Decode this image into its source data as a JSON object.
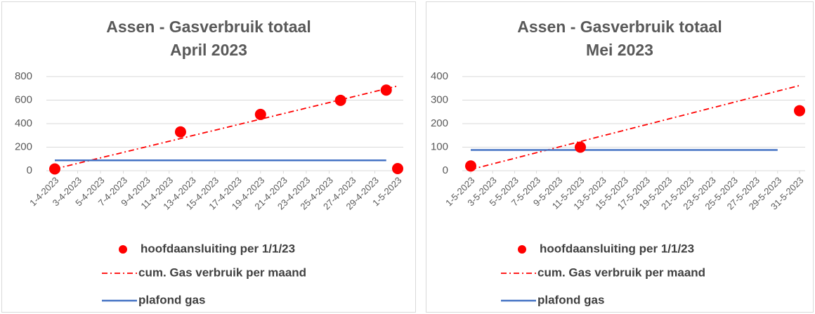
{
  "chart_data": [
    {
      "type": "line",
      "title": "Assen - Gasverbruik totaal",
      "subtitle": "April 2023",
      "xlim": [
        1,
        31
      ],
      "xticks": [
        {
          "value": 1,
          "label": "1-4-2023"
        },
        {
          "value": 3,
          "label": "3-4-2023"
        },
        {
          "value": 5,
          "label": "5-4-2023"
        },
        {
          "value": 7,
          "label": "7-4-2023"
        },
        {
          "value": 9,
          "label": "9-4-2023"
        },
        {
          "value": 11,
          "label": "11-4-2023"
        },
        {
          "value": 13,
          "label": "13-4-2023"
        },
        {
          "value": 15,
          "label": "15-4-2023"
        },
        {
          "value": 17,
          "label": "17-4-2023"
        },
        {
          "value": 19,
          "label": "19-4-2023"
        },
        {
          "value": 21,
          "label": "21-4-2023"
        },
        {
          "value": 23,
          "label": "23-4-2023"
        },
        {
          "value": 25,
          "label": "25-4-2023"
        },
        {
          "value": 27,
          "label": "27-4-2023"
        },
        {
          "value": 29,
          "label": "29-4-2023"
        },
        {
          "value": 31,
          "label": "1-5-2023"
        }
      ],
      "ylim": [
        0,
        800
      ],
      "yticks": [
        0,
        200,
        400,
        600,
        800
      ],
      "grid": true,
      "series": [
        {
          "name": "hoofdaansluiting per 1/1/23",
          "type": "scatter",
          "color": "#ff0000",
          "x": [
            1,
            12,
            19,
            26,
            30,
            31
          ],
          "values": [
            15,
            330,
            478,
            598,
            685,
            18
          ]
        },
        {
          "name": "cum. Gas verbruik per maand",
          "type": "line",
          "style": "dash-dot",
          "color": "#ff0000",
          "x": [
            1,
            31
          ],
          "values": [
            15,
            720
          ]
        },
        {
          "name": "plafond gas",
          "type": "line",
          "style": "solid",
          "color": "#4472c4",
          "x": [
            1,
            30
          ],
          "values": [
            88,
            88
          ]
        }
      ]
    },
    {
      "type": "line",
      "title": "Assen - Gasverbruik totaal",
      "subtitle": "Mei 2023",
      "xlim": [
        1,
        31
      ],
      "xticks": [
        {
          "value": 1,
          "label": "1-5-2023"
        },
        {
          "value": 3,
          "label": "3-5-2023"
        },
        {
          "value": 5,
          "label": "5-5-2023"
        },
        {
          "value": 7,
          "label": "7-5-2023"
        },
        {
          "value": 9,
          "label": "9-5-2023"
        },
        {
          "value": 11,
          "label": "11-5-2023"
        },
        {
          "value": 13,
          "label": "13-5-2023"
        },
        {
          "value": 15,
          "label": "15-5-2023"
        },
        {
          "value": 17,
          "label": "17-5-2023"
        },
        {
          "value": 19,
          "label": "19-5-2023"
        },
        {
          "value": 21,
          "label": "21-5-2023"
        },
        {
          "value": 23,
          "label": "23-5-2023"
        },
        {
          "value": 25,
          "label": "25-5-2023"
        },
        {
          "value": 27,
          "label": "27-5-2023"
        },
        {
          "value": 29,
          "label": "29-5-2023"
        },
        {
          "value": 31,
          "label": "31-5-2023"
        }
      ],
      "ylim": [
        0,
        400
      ],
      "yticks": [
        0,
        100,
        200,
        300,
        400
      ],
      "grid": true,
      "series": [
        {
          "name": "hoofdaansluiting per 1/1/23",
          "type": "scatter",
          "color": "#ff0000",
          "x": [
            1,
            11,
            31
          ],
          "values": [
            20,
            100,
            255
          ]
        },
        {
          "name": "cum. Gas verbruik per maand",
          "type": "line",
          "style": "dash-dot",
          "color": "#ff0000",
          "x": [
            1,
            31
          ],
          "values": [
            5,
            362
          ]
        },
        {
          "name": "plafond gas",
          "type": "line",
          "style": "solid",
          "color": "#4472c4",
          "x": [
            1,
            29
          ],
          "values": [
            88,
            88
          ]
        }
      ]
    }
  ]
}
